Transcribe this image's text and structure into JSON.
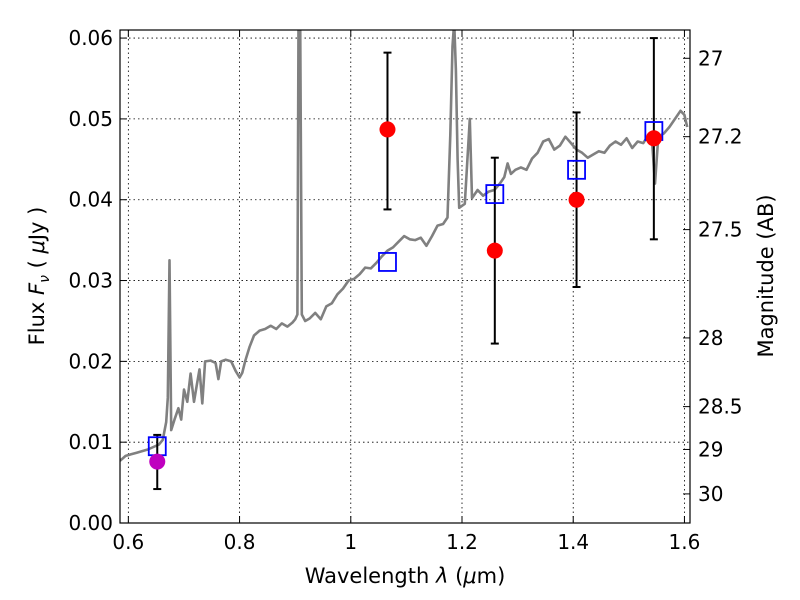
{
  "chart_data": {
    "type": "scatter",
    "title": "",
    "xlabel": "Wavelength  λ (μm)",
    "ylabel": "Flux  F_ν  ( μJy )",
    "y2label": "Magnitude (AB)",
    "xlim": [
      0.585,
      1.61
    ],
    "ylim": [
      0.0,
      0.061
    ],
    "grid": true,
    "x_ticks": [
      0.6,
      0.8,
      1.0,
      1.2,
      1.4,
      1.6
    ],
    "x_tick_labels": [
      "0.6",
      "0.8",
      "1",
      "1.2",
      "1.4",
      "1.6"
    ],
    "y_ticks": [
      0.0,
      0.01,
      0.02,
      0.03,
      0.04,
      0.05,
      0.06
    ],
    "y_tick_labels": [
      "0.00",
      "0.01",
      "0.02",
      "0.03",
      "0.04",
      "0.05",
      "0.06"
    ],
    "y2_ticks": [
      {
        "label": "27",
        "flux": 0.0575
      },
      {
        "label": "27.2",
        "flux": 0.0478
      },
      {
        "label": "27.5",
        "flux": 0.0363
      },
      {
        "label": "28",
        "flux": 0.0229
      },
      {
        "label": "28.5",
        "flux": 0.0144
      },
      {
        "label": "29",
        "flux": 0.0091
      },
      {
        "label": "30",
        "flux": 0.0036
      }
    ],
    "series": [
      {
        "type": "line",
        "color": "#808080",
        "points": [
          [
            0.585,
            0.0077
          ],
          [
            0.595,
            0.0083
          ],
          [
            0.605,
            0.0085
          ],
          [
            0.615,
            0.0087
          ],
          [
            0.625,
            0.0089
          ],
          [
            0.635,
            0.0091
          ],
          [
            0.645,
            0.0094
          ],
          [
            0.655,
            0.0097
          ],
          [
            0.662,
            0.0103
          ],
          [
            0.668,
            0.0125
          ],
          [
            0.671,
            0.0155
          ],
          [
            0.674,
            0.0325
          ],
          [
            0.677,
            0.0115
          ],
          [
            0.683,
            0.0128
          ],
          [
            0.69,
            0.0142
          ],
          [
            0.695,
            0.0128
          ],
          [
            0.7,
            0.0165
          ],
          [
            0.706,
            0.015
          ],
          [
            0.712,
            0.0185
          ],
          [
            0.718,
            0.015
          ],
          [
            0.723,
            0.017
          ],
          [
            0.728,
            0.019
          ],
          [
            0.733,
            0.0148
          ],
          [
            0.738,
            0.02
          ],
          [
            0.748,
            0.0201
          ],
          [
            0.757,
            0.0198
          ],
          [
            0.762,
            0.0178
          ],
          [
            0.767,
            0.02
          ],
          [
            0.775,
            0.0202
          ],
          [
            0.785,
            0.02
          ],
          [
            0.793,
            0.0188
          ],
          [
            0.8,
            0.018
          ],
          [
            0.805,
            0.0186
          ],
          [
            0.81,
            0.02
          ],
          [
            0.818,
            0.0218
          ],
          [
            0.826,
            0.0232
          ],
          [
            0.836,
            0.0238
          ],
          [
            0.846,
            0.024
          ],
          [
            0.856,
            0.0244
          ],
          [
            0.866,
            0.024
          ],
          [
            0.876,
            0.0247
          ],
          [
            0.886,
            0.0243
          ],
          [
            0.895,
            0.0248
          ],
          [
            0.9,
            0.0252
          ],
          [
            0.904,
            0.0258
          ],
          [
            0.906,
            0.062
          ],
          [
            0.909,
            0.062
          ],
          [
            0.912,
            0.0258
          ],
          [
            0.918,
            0.025
          ],
          [
            0.926,
            0.0253
          ],
          [
            0.936,
            0.026
          ],
          [
            0.946,
            0.0252
          ],
          [
            0.956,
            0.0268
          ],
          [
            0.966,
            0.0272
          ],
          [
            0.976,
            0.0283
          ],
          [
            0.986,
            0.029
          ],
          [
            0.996,
            0.03
          ],
          [
            1.006,
            0.0302
          ],
          [
            1.016,
            0.0308
          ],
          [
            1.026,
            0.0316
          ],
          [
            1.036,
            0.0315
          ],
          [
            1.046,
            0.0322
          ],
          [
            1.056,
            0.033
          ],
          [
            1.066,
            0.0337
          ],
          [
            1.076,
            0.0341
          ],
          [
            1.086,
            0.0348
          ],
          [
            1.096,
            0.0355
          ],
          [
            1.106,
            0.0351
          ],
          [
            1.116,
            0.035
          ],
          [
            1.126,
            0.0353
          ],
          [
            1.136,
            0.0343
          ],
          [
            1.146,
            0.0355
          ],
          [
            1.156,
            0.0368
          ],
          [
            1.166,
            0.037
          ],
          [
            1.174,
            0.0378
          ],
          [
            1.179,
            0.048
          ],
          [
            1.183,
            0.059
          ],
          [
            1.186,
            0.062
          ],
          [
            1.189,
            0.056
          ],
          [
            1.192,
            0.045
          ],
          [
            1.195,
            0.039
          ],
          [
            1.205,
            0.0395
          ],
          [
            1.214,
            0.05
          ],
          [
            1.218,
            0.0402
          ],
          [
            1.228,
            0.0412
          ],
          [
            1.238,
            0.0405
          ],
          [
            1.248,
            0.041
          ],
          [
            1.258,
            0.0412
          ],
          [
            1.268,
            0.042
          ],
          [
            1.276,
            0.0428
          ],
          [
            1.282,
            0.0445
          ],
          [
            1.288,
            0.0432
          ],
          [
            1.296,
            0.0437
          ],
          [
            1.306,
            0.044
          ],
          [
            1.316,
            0.0437
          ],
          [
            1.326,
            0.0451
          ],
          [
            1.336,
            0.0458
          ],
          [
            1.346,
            0.0472
          ],
          [
            1.356,
            0.0475
          ],
          [
            1.366,
            0.0462
          ],
          [
            1.376,
            0.0467
          ],
          [
            1.386,
            0.0478
          ],
          [
            1.396,
            0.047
          ],
          [
            1.406,
            0.0462
          ],
          [
            1.416,
            0.0458
          ],
          [
            1.426,
            0.0452
          ],
          [
            1.436,
            0.0456
          ],
          [
            1.446,
            0.046
          ],
          [
            1.456,
            0.0458
          ],
          [
            1.466,
            0.0467
          ],
          [
            1.476,
            0.0472
          ],
          [
            1.486,
            0.0468
          ],
          [
            1.496,
            0.0476
          ],
          [
            1.506,
            0.0464
          ],
          [
            1.516,
            0.0472
          ],
          [
            1.526,
            0.047
          ],
          [
            1.535,
            0.048
          ],
          [
            1.542,
            0.047
          ],
          [
            1.547,
            0.042
          ],
          [
            1.553,
            0.0478
          ],
          [
            1.563,
            0.0482
          ],
          [
            1.573,
            0.049
          ],
          [
            1.583,
            0.05
          ],
          [
            1.593,
            0.051
          ],
          [
            1.6,
            0.0505
          ],
          [
            1.605,
            0.049
          ]
        ]
      },
      {
        "type": "errorbar",
        "color": "#ff0000",
        "marker": "circle",
        "points": [
          {
            "x": 1.066,
            "y": 0.0487,
            "yerr": [
              0.0388,
              0.0582
            ]
          },
          {
            "x": 1.259,
            "y": 0.0337,
            "yerr": [
              0.0222,
              0.0452
            ]
          },
          {
            "x": 1.406,
            "y": 0.04,
            "yerr": [
              0.0292,
              0.0508
            ]
          },
          {
            "x": 1.545,
            "y": 0.0476,
            "yerr": [
              0.0351,
              0.06
            ]
          }
        ]
      },
      {
        "type": "errorbar",
        "color": "#bf00bf",
        "marker": "circle",
        "points": [
          {
            "x": 0.652,
            "y": 0.0076,
            "yerr": [
              0.0042,
              0.0109
            ]
          }
        ]
      },
      {
        "type": "scatter",
        "color": "#0000ff",
        "marker": "open-square",
        "points": [
          {
            "x": 0.652,
            "y": 0.0095
          },
          {
            "x": 1.066,
            "y": 0.0323
          },
          {
            "x": 1.259,
            "y": 0.0407
          },
          {
            "x": 1.406,
            "y": 0.0437
          },
          {
            "x": 1.545,
            "y": 0.0485
          }
        ]
      }
    ]
  }
}
